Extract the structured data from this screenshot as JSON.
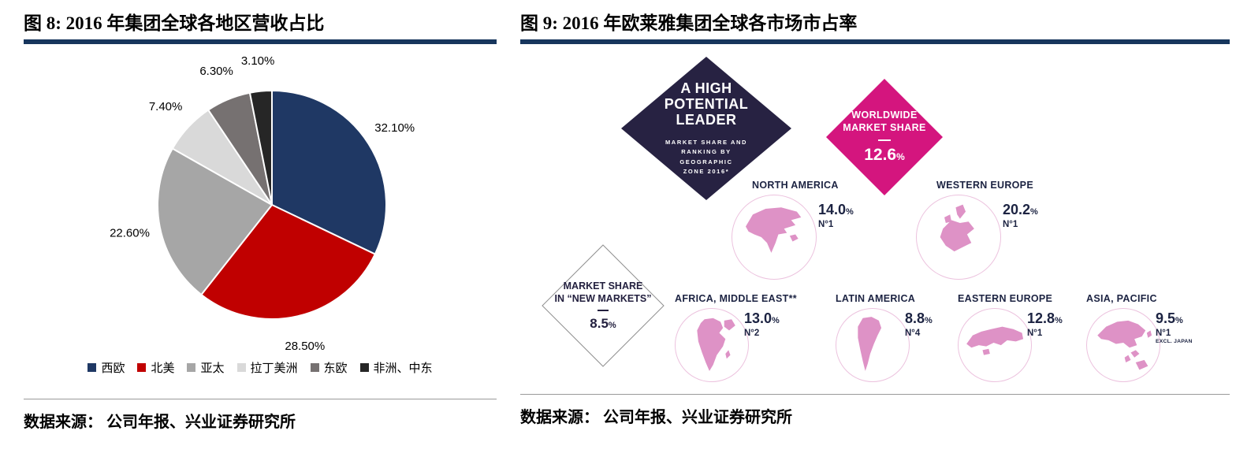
{
  "chart_data": [
    {
      "id": "figure-8",
      "type": "pie",
      "title": "图 8:  2016 年集团全球各地区营收占比",
      "source": "数据来源：  公司年报、兴业证券研究所",
      "categories": [
        "西欧",
        "北美",
        "亚太",
        "拉丁美洲",
        "东欧",
        "非洲、中东"
      ],
      "values": [
        32.1,
        28.5,
        22.6,
        7.4,
        6.3,
        3.1
      ],
      "value_labels": [
        "32.10%",
        "28.50%",
        "22.60%",
        "7.40%",
        "6.30%",
        "3.10%"
      ],
      "colors": [
        "#1f3864",
        "#c00000",
        "#a6a6a6",
        "#d9d9d9",
        "#767171",
        "#262626"
      ],
      "start_angle_deg": 0,
      "direction": "clockwise",
      "legend_position": "bottom",
      "slice_border_color": "#ffffff"
    },
    {
      "id": "figure-9",
      "type": "table",
      "title": "图 9:  2016 年欧莱雅集团全球各市场市占率",
      "source": "数据来源：  公司年报、兴业证券研究所",
      "leader_diamond": {
        "heading": "A HIGH\nPOTENTIAL\nLEADER",
        "subheading": "MARKET SHARE AND\nRANKING BY\nGEOGRAPHIC\nZONE 2016*",
        "color": "#272242"
      },
      "worldwide_diamond": {
        "label": "WORLDWIDE\nMARKET SHARE",
        "value": "12.6",
        "unit": "%",
        "color": "#d4157e"
      },
      "new_markets_diamond": {
        "label": "MARKET SHARE\nIN “NEW MARKETS”",
        "value": "8.5",
        "unit": "%",
        "color": "#ffffff"
      },
      "regions": [
        {
          "name": "NORTH AMERICA",
          "share": "14.0",
          "unit": "%",
          "rank": "N°1"
        },
        {
          "name": "WESTERN EUROPE",
          "share": "20.2",
          "unit": "%",
          "rank": "N°1"
        },
        {
          "name": "AFRICA, MIDDLE EAST**",
          "share": "13.0",
          "unit": "%",
          "rank": "N°2"
        },
        {
          "name": "LATIN AMERICA",
          "share": "8.8",
          "unit": "%",
          "rank": "N°4"
        },
        {
          "name": "EASTERN EUROPE",
          "share": "12.8",
          "unit": "%",
          "rank": "N°1"
        },
        {
          "name": "ASIA, PACIFIC",
          "share": "9.5",
          "unit": "%",
          "rank": "N°1",
          "note": "EXCL. JAPAN"
        }
      ],
      "map_color": "#de92c6",
      "accent_navy": "#1c2342"
    }
  ]
}
